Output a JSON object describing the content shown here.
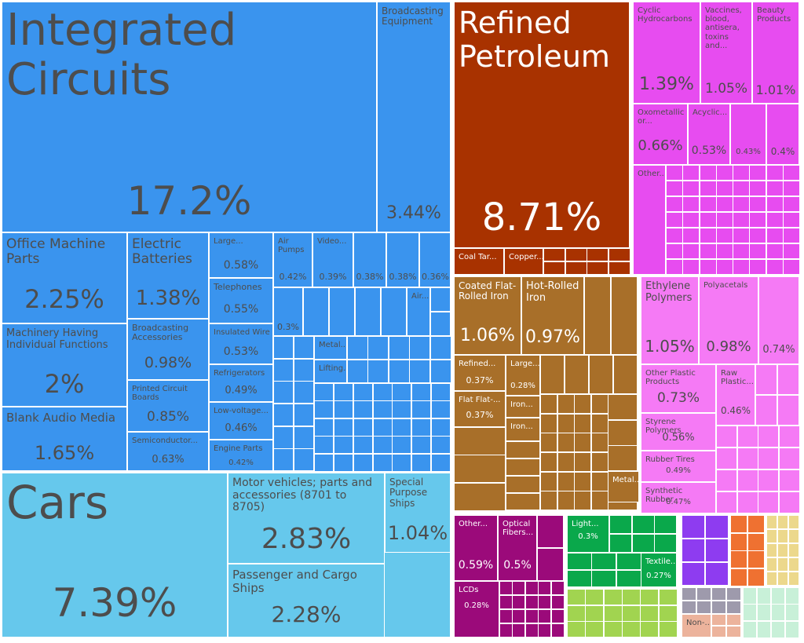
{
  "chart_data": {
    "type": "treemap",
    "title": "",
    "colors": {
      "machines": "#3a94ee",
      "transportation": "#66c8ec",
      "mineral": "#a83200",
      "chemical": "#e74cf0",
      "metals": "#a86f29",
      "plastics": "#f57af5",
      "instruments": "#9b0a7a",
      "textiles": "#0aa84b",
      "vegetables": "#a1d450",
      "misc": "#8e3cf0",
      "stone": "#ef7131",
      "paper": "#ecd88c",
      "foodstuffs": "#9e9aac",
      "footwear": "#ecb39c",
      "other": "#c8f0d8"
    },
    "items": [
      {
        "name": "Integrated Circuits",
        "value": 17.2,
        "value_label": "17.2%",
        "group": "machines"
      },
      {
        "name": "Broadcasting Equipment",
        "value": 3.44,
        "value_label": "3.44%",
        "group": "machines"
      },
      {
        "name": "Office Machine Parts",
        "value": 2.25,
        "value_label": "2.25%",
        "group": "machines"
      },
      {
        "name": "Machinery Having Individual Functions",
        "value": 2,
        "value_label": "2%",
        "group": "machines"
      },
      {
        "name": "Blank Audio Media",
        "value": 1.65,
        "value_label": "1.65%",
        "group": "machines"
      },
      {
        "name": "Electric Batteries",
        "value": 1.38,
        "value_label": "1.38%",
        "group": "machines"
      },
      {
        "name": "Broadcasting Accessories",
        "value": 0.98,
        "value_label": "0.98%",
        "group": "machines"
      },
      {
        "name": "Printed Circuit Boards",
        "value": 0.85,
        "value_label": "0.85%",
        "group": "machines"
      },
      {
        "name": "Semiconductor...",
        "value": 0.63,
        "value_label": "0.63%",
        "group": "machines"
      },
      {
        "name": "Large...",
        "value": 0.58,
        "value_label": "0.58%",
        "group": "machines"
      },
      {
        "name": "Telephones",
        "value": 0.55,
        "value_label": "0.55%",
        "group": "machines"
      },
      {
        "name": "Insulated Wire",
        "value": 0.53,
        "value_label": "0.53%",
        "group": "machines"
      },
      {
        "name": "Refrigerators",
        "value": 0.49,
        "value_label": "0.49%",
        "group": "machines"
      },
      {
        "name": "Low-voltage...",
        "value": 0.46,
        "value_label": "0.46%",
        "group": "machines"
      },
      {
        "name": "Engine Parts",
        "value": 0.42,
        "value_label": "0.42%",
        "group": "machines"
      },
      {
        "name": "Air Pumps",
        "value": 0.42,
        "value_label": "0.42%",
        "group": "machines"
      },
      {
        "name": "Video...",
        "value": 0.39,
        "value_label": "0.39%",
        "group": "machines"
      },
      {
        "name": "",
        "value": 0.38,
        "value_label": "0.38%",
        "group": "machines"
      },
      {
        "name": "",
        "value": 0.38,
        "value_label": "0.38%",
        "group": "machines"
      },
      {
        "name": "",
        "value": 0.36,
        "value_label": "0.36%",
        "group": "machines"
      },
      {
        "name": "",
        "value": 0.3,
        "value_label": "0.3%",
        "group": "machines"
      },
      {
        "name": "Air...",
        "group": "machines"
      },
      {
        "name": "Metal...",
        "group": "machines"
      },
      {
        "name": "Lifting...",
        "group": "machines"
      },
      {
        "name": "Cars",
        "value": 7.39,
        "value_label": "7.39%",
        "group": "transportation"
      },
      {
        "name": "Motor vehicles; parts and accessories (8701 to 8705)",
        "value": 2.83,
        "value_label": "2.83%",
        "group": "transportation"
      },
      {
        "name": "Passenger and Cargo Ships",
        "value": 2.28,
        "value_label": "2.28%",
        "group": "transportation"
      },
      {
        "name": "Special Purpose Ships",
        "value": 1.04,
        "value_label": "1.04%",
        "group": "transportation"
      },
      {
        "name": "Refined Petroleum",
        "value": 8.71,
        "value_label": "8.71%",
        "group": "mineral"
      },
      {
        "name": "Coal Tar...",
        "group": "mineral"
      },
      {
        "name": "Copper...",
        "group": "mineral"
      },
      {
        "name": "Cyclic Hydrocarbons",
        "value": 1.39,
        "value_label": "1.39%",
        "group": "chemical"
      },
      {
        "name": "Vaccines, blood, antisera, toxins and...",
        "value": 1.05,
        "value_label": "1.05%",
        "group": "chemical"
      },
      {
        "name": "Beauty Products",
        "value": 1.01,
        "value_label": "1.01%",
        "group": "chemical"
      },
      {
        "name": "Oxometallic or...",
        "value": 0.66,
        "value_label": "0.66%",
        "group": "chemical"
      },
      {
        "name": "Acyclic...",
        "value": 0.53,
        "value_label": "0.53%",
        "group": "chemical"
      },
      {
        "name": "",
        "value": 0.43,
        "value_label": "0.43%",
        "group": "chemical"
      },
      {
        "name": "",
        "value": 0.4,
        "value_label": "0.4%",
        "group": "chemical"
      },
      {
        "name": "Other...",
        "group": "chemical"
      },
      {
        "name": "Coated Flat-Rolled Iron",
        "value": 1.06,
        "value_label": "1.06%",
        "group": "metals"
      },
      {
        "name": "Hot-Rolled Iron",
        "value": 0.97,
        "value_label": "0.97%",
        "group": "metals"
      },
      {
        "name": "Refined...",
        "value": 0.37,
        "value_label": "0.37%",
        "group": "metals"
      },
      {
        "name": "Large...",
        "value": 0.28,
        "value_label": "0.28%",
        "group": "metals"
      },
      {
        "name": "Flat Flat-...",
        "value": 0.37,
        "value_label": "0.37%",
        "group": "metals"
      },
      {
        "name": "Iron...",
        "group": "metals"
      },
      {
        "name": "Iron...",
        "group": "metals"
      },
      {
        "name": "Metal...",
        "group": "metals"
      },
      {
        "name": "Ethylene Polymers",
        "value": 1.05,
        "value_label": "1.05%",
        "group": "plastics"
      },
      {
        "name": "Polyacetals",
        "value": 0.98,
        "value_label": "0.98%",
        "group": "plastics"
      },
      {
        "name": "",
        "value": 0.74,
        "value_label": "0.74%",
        "group": "plastics"
      },
      {
        "name": "Other Plastic Products",
        "value": 0.73,
        "value_label": "0.73%",
        "group": "plastics"
      },
      {
        "name": "Raw Plastic...",
        "value": 0.46,
        "value_label": "0.46%",
        "group": "plastics"
      },
      {
        "name": "Styrene Polymers",
        "value": 0.56,
        "value_label": "0.56%",
        "group": "plastics"
      },
      {
        "name": "Rubber Tires",
        "value": 0.49,
        "value_label": "0.49%",
        "group": "plastics"
      },
      {
        "name": "Synthetic Rubber",
        "value": 0.47,
        "value_label": "0.47%",
        "group": "plastics"
      },
      {
        "name": "Other...",
        "value": 0.59,
        "value_label": "0.59%",
        "group": "instruments"
      },
      {
        "name": "Optical Fibers...",
        "value": 0.5,
        "value_label": "0.5%",
        "group": "instruments"
      },
      {
        "name": "LCDs",
        "value": 0.28,
        "value_label": "0.28%",
        "group": "instruments"
      },
      {
        "name": "Light...",
        "value": 0.3,
        "value_label": "0.3%",
        "group": "textiles"
      },
      {
        "name": "Textile...",
        "value": 0.27,
        "value_label": "0.27%",
        "group": "textiles"
      },
      {
        "name": "Non-...",
        "group": "footwear"
      }
    ]
  }
}
